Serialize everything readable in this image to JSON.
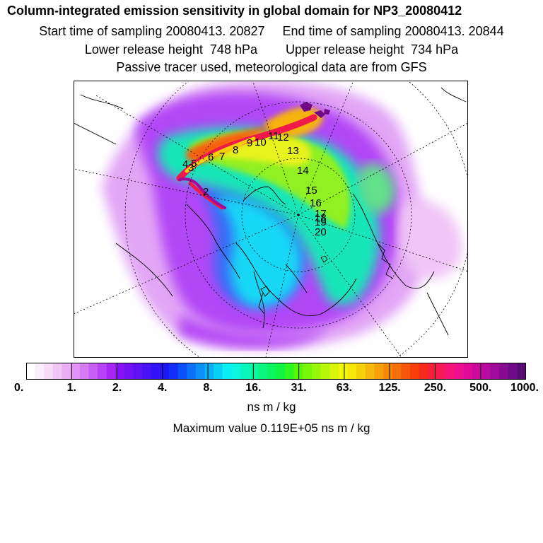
{
  "titles": {
    "line1": "Column-integrated emission sensitivity in global domain for NP3_20080412",
    "line2": "Start time of sampling 20080413. 20827     End time of sampling 20080413. 20844",
    "line3": "Lower release height  748 hPa        Upper release height  734 hPa",
    "line4": "Passive tracer used, meteorological data are from GFS"
  },
  "trajectory_labels": [
    "2",
    "3",
    "4",
    "5",
    "6",
    "7",
    "8",
    "9",
    "10",
    "11",
    "12",
    "13",
    "14",
    "15",
    "16",
    "17",
    "18",
    "19",
    "20"
  ],
  "colorbar": {
    "ticks": [
      "0.",
      "1.",
      "2.",
      "4.",
      "8.",
      "16.",
      "31.",
      "63.",
      "125.",
      "250.",
      "500.",
      "1000."
    ],
    "colors": [
      "#ffffff",
      "#fbeefc",
      "#f6dcf8",
      "#f0c6f6",
      "#eaaef6",
      "#e294f6",
      "#d67af6",
      "#c85ef6",
      "#b842f6",
      "#a626f6",
      "#8a12f6",
      "#7412f6",
      "#5e12f6",
      "#4812f6",
      "#3212f6",
      "#1e16f6",
      "#1030f6",
      "#0a50f6",
      "#0a70f6",
      "#0a90f6",
      "#0ab0f6",
      "#0ad0f6",
      "#0aeef6",
      "#0af6e0",
      "#0af6c0",
      "#0af6a0",
      "#0af680",
      "#0af660",
      "#10f640",
      "#30f620",
      "#56f60a",
      "#78f60a",
      "#98f60a",
      "#b8f60a",
      "#d8f60a",
      "#f0f60a",
      "#f6e60a",
      "#f6d00a",
      "#f6b80a",
      "#f6a00a",
      "#f6880a",
      "#f6700a",
      "#f6580a",
      "#f6400a",
      "#f62a1a",
      "#f6203a",
      "#f61a5a",
      "#f6147a",
      "#f00e90",
      "#e00a98",
      "#cc0a9e",
      "#b80aa0",
      "#a00a9c",
      "#880a94",
      "#700a86",
      "#580a72"
    ],
    "unit": "ns m / kg"
  },
  "maximum": "Maximum value  0.119E+05 ns m / kg"
}
